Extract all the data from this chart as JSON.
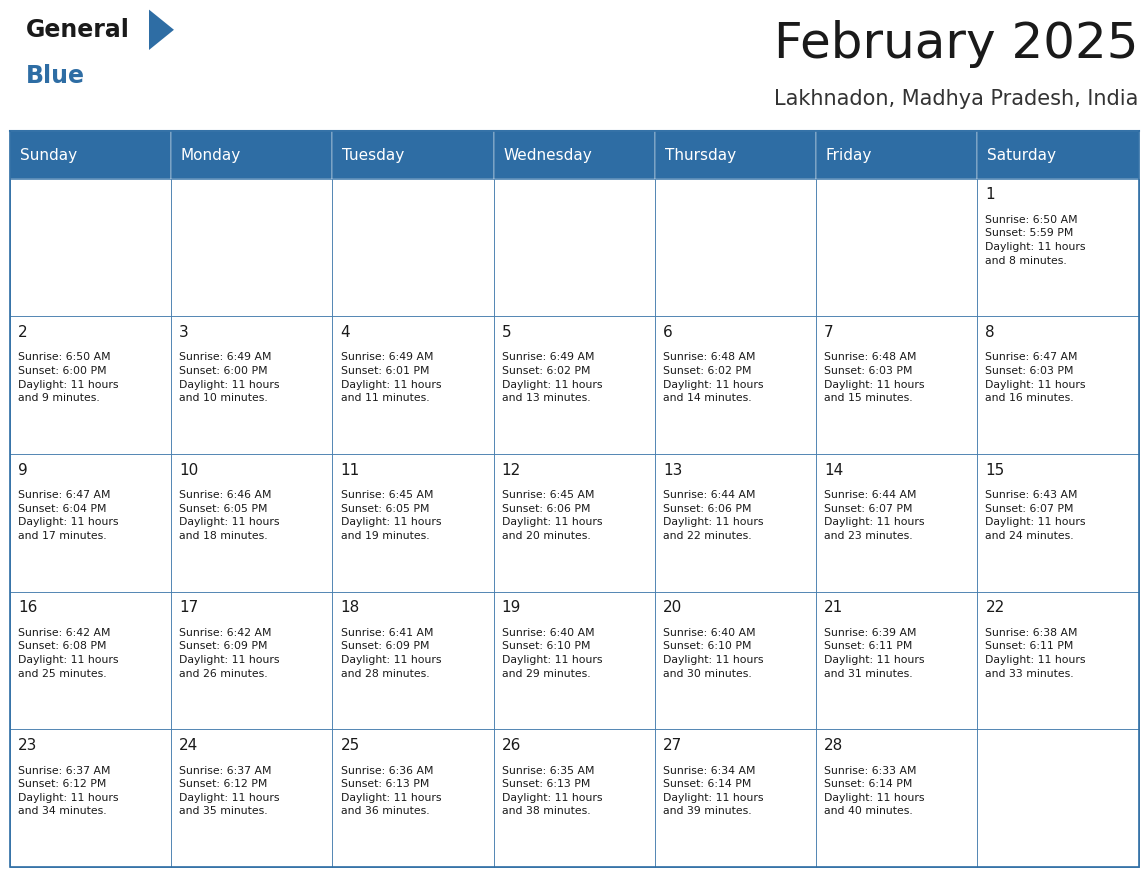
{
  "title": "February 2025",
  "subtitle": "Lakhnadon, Madhya Pradesh, India",
  "header_bg": "#2E6DA4",
  "header_text_color": "#FFFFFF",
  "border_color": "#2E6DA4",
  "title_color": "#1a1a1a",
  "subtitle_color": "#333333",
  "cell_bg": "#FFFFFF",
  "days_of_week": [
    "Sunday",
    "Monday",
    "Tuesday",
    "Wednesday",
    "Thursday",
    "Friday",
    "Saturday"
  ],
  "calendar_data": [
    [
      {
        "day": "",
        "info": ""
      },
      {
        "day": "",
        "info": ""
      },
      {
        "day": "",
        "info": ""
      },
      {
        "day": "",
        "info": ""
      },
      {
        "day": "",
        "info": ""
      },
      {
        "day": "",
        "info": ""
      },
      {
        "day": "1",
        "info": "Sunrise: 6:50 AM\nSunset: 5:59 PM\nDaylight: 11 hours\nand 8 minutes."
      }
    ],
    [
      {
        "day": "2",
        "info": "Sunrise: 6:50 AM\nSunset: 6:00 PM\nDaylight: 11 hours\nand 9 minutes."
      },
      {
        "day": "3",
        "info": "Sunrise: 6:49 AM\nSunset: 6:00 PM\nDaylight: 11 hours\nand 10 minutes."
      },
      {
        "day": "4",
        "info": "Sunrise: 6:49 AM\nSunset: 6:01 PM\nDaylight: 11 hours\nand 11 minutes."
      },
      {
        "day": "5",
        "info": "Sunrise: 6:49 AM\nSunset: 6:02 PM\nDaylight: 11 hours\nand 13 minutes."
      },
      {
        "day": "6",
        "info": "Sunrise: 6:48 AM\nSunset: 6:02 PM\nDaylight: 11 hours\nand 14 minutes."
      },
      {
        "day": "7",
        "info": "Sunrise: 6:48 AM\nSunset: 6:03 PM\nDaylight: 11 hours\nand 15 minutes."
      },
      {
        "day": "8",
        "info": "Sunrise: 6:47 AM\nSunset: 6:03 PM\nDaylight: 11 hours\nand 16 minutes."
      }
    ],
    [
      {
        "day": "9",
        "info": "Sunrise: 6:47 AM\nSunset: 6:04 PM\nDaylight: 11 hours\nand 17 minutes."
      },
      {
        "day": "10",
        "info": "Sunrise: 6:46 AM\nSunset: 6:05 PM\nDaylight: 11 hours\nand 18 minutes."
      },
      {
        "day": "11",
        "info": "Sunrise: 6:45 AM\nSunset: 6:05 PM\nDaylight: 11 hours\nand 19 minutes."
      },
      {
        "day": "12",
        "info": "Sunrise: 6:45 AM\nSunset: 6:06 PM\nDaylight: 11 hours\nand 20 minutes."
      },
      {
        "day": "13",
        "info": "Sunrise: 6:44 AM\nSunset: 6:06 PM\nDaylight: 11 hours\nand 22 minutes."
      },
      {
        "day": "14",
        "info": "Sunrise: 6:44 AM\nSunset: 6:07 PM\nDaylight: 11 hours\nand 23 minutes."
      },
      {
        "day": "15",
        "info": "Sunrise: 6:43 AM\nSunset: 6:07 PM\nDaylight: 11 hours\nand 24 minutes."
      }
    ],
    [
      {
        "day": "16",
        "info": "Sunrise: 6:42 AM\nSunset: 6:08 PM\nDaylight: 11 hours\nand 25 minutes."
      },
      {
        "day": "17",
        "info": "Sunrise: 6:42 AM\nSunset: 6:09 PM\nDaylight: 11 hours\nand 26 minutes."
      },
      {
        "day": "18",
        "info": "Sunrise: 6:41 AM\nSunset: 6:09 PM\nDaylight: 11 hours\nand 28 minutes."
      },
      {
        "day": "19",
        "info": "Sunrise: 6:40 AM\nSunset: 6:10 PM\nDaylight: 11 hours\nand 29 minutes."
      },
      {
        "day": "20",
        "info": "Sunrise: 6:40 AM\nSunset: 6:10 PM\nDaylight: 11 hours\nand 30 minutes."
      },
      {
        "day": "21",
        "info": "Sunrise: 6:39 AM\nSunset: 6:11 PM\nDaylight: 11 hours\nand 31 minutes."
      },
      {
        "day": "22",
        "info": "Sunrise: 6:38 AM\nSunset: 6:11 PM\nDaylight: 11 hours\nand 33 minutes."
      }
    ],
    [
      {
        "day": "23",
        "info": "Sunrise: 6:37 AM\nSunset: 6:12 PM\nDaylight: 11 hours\nand 34 minutes."
      },
      {
        "day": "24",
        "info": "Sunrise: 6:37 AM\nSunset: 6:12 PM\nDaylight: 11 hours\nand 35 minutes."
      },
      {
        "day": "25",
        "info": "Sunrise: 6:36 AM\nSunset: 6:13 PM\nDaylight: 11 hours\nand 36 minutes."
      },
      {
        "day": "26",
        "info": "Sunrise: 6:35 AM\nSunset: 6:13 PM\nDaylight: 11 hours\nand 38 minutes."
      },
      {
        "day": "27",
        "info": "Sunrise: 6:34 AM\nSunset: 6:14 PM\nDaylight: 11 hours\nand 39 minutes."
      },
      {
        "day": "28",
        "info": "Sunrise: 6:33 AM\nSunset: 6:14 PM\nDaylight: 11 hours\nand 40 minutes."
      },
      {
        "day": "",
        "info": ""
      }
    ]
  ],
  "logo_general_color": "#1a1a1a",
  "logo_blue_color": "#2E6DA4",
  "logo_triangle_color": "#2E6DA4",
  "title_fontsize": 36,
  "subtitle_fontsize": 15,
  "header_fontsize": 11,
  "day_num_fontsize": 11,
  "info_fontsize": 7.8
}
